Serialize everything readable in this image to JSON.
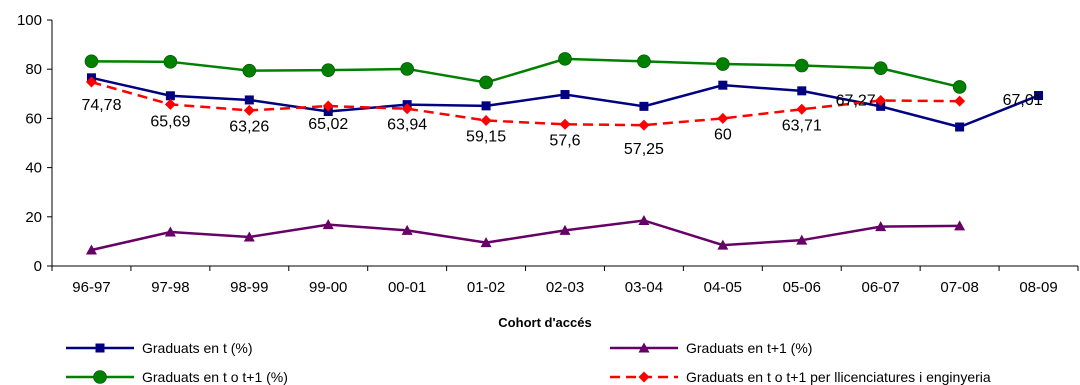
{
  "chart_data": {
    "type": "line",
    "xlabel": "Cohort d'accés",
    "ylabel": "",
    "ylim": [
      0,
      100
    ],
    "yticks": [
      0,
      20,
      40,
      60,
      80,
      100
    ],
    "categories": [
      "96-97",
      "97-98",
      "98-99",
      "99-00",
      "00-01",
      "01-02",
      "02-03",
      "03-04",
      "04-05",
      "05-06",
      "06-07",
      "07-08",
      "08-09"
    ],
    "grid": false,
    "legend_position": "bottom",
    "series": [
      {
        "name": "Graduats en t (%)",
        "color": "#000080",
        "marker": "square",
        "line_style": "solid",
        "values": [
          76.5,
          69.2,
          67.5,
          62.8,
          65.6,
          65.1,
          69.7,
          64.9,
          73.5,
          71.2,
          64.9,
          56.5,
          69.3
        ]
      },
      {
        "name": "Graduats en t+1 (%)",
        "color": "#660066",
        "marker": "triangle",
        "line_style": "solid",
        "values": [
          6.5,
          13.8,
          11.8,
          16.8,
          14.5,
          9.5,
          14.5,
          18.5,
          8.5,
          10.5,
          16.0,
          16.3,
          null
        ]
      },
      {
        "name": "Graduats en t o t+1 (%)",
        "color": "#008000",
        "marker": "circle",
        "line_style": "solid",
        "values": [
          83.2,
          83.0,
          79.4,
          79.6,
          80.1,
          74.6,
          84.2,
          83.2,
          82.1,
          81.5,
          80.4,
          72.8,
          null
        ]
      },
      {
        "name": "Graduats en t o t+1 per llicenciatures i enginyeria",
        "color": "#ff0000",
        "marker": "diamond",
        "line_style": "dashed",
        "values": [
          74.78,
          65.69,
          63.26,
          65.02,
          63.94,
          59.15,
          57.6,
          57.25,
          60,
          63.71,
          67.27,
          67.01,
          null
        ]
      }
    ],
    "data_labels": [
      "74,78",
      "65,69",
      "63,26",
      "65,02",
      "63,94",
      "59,15",
      "57,6",
      "57,25",
      "60",
      "63,71",
      "67,27",
      "67,01"
    ]
  }
}
